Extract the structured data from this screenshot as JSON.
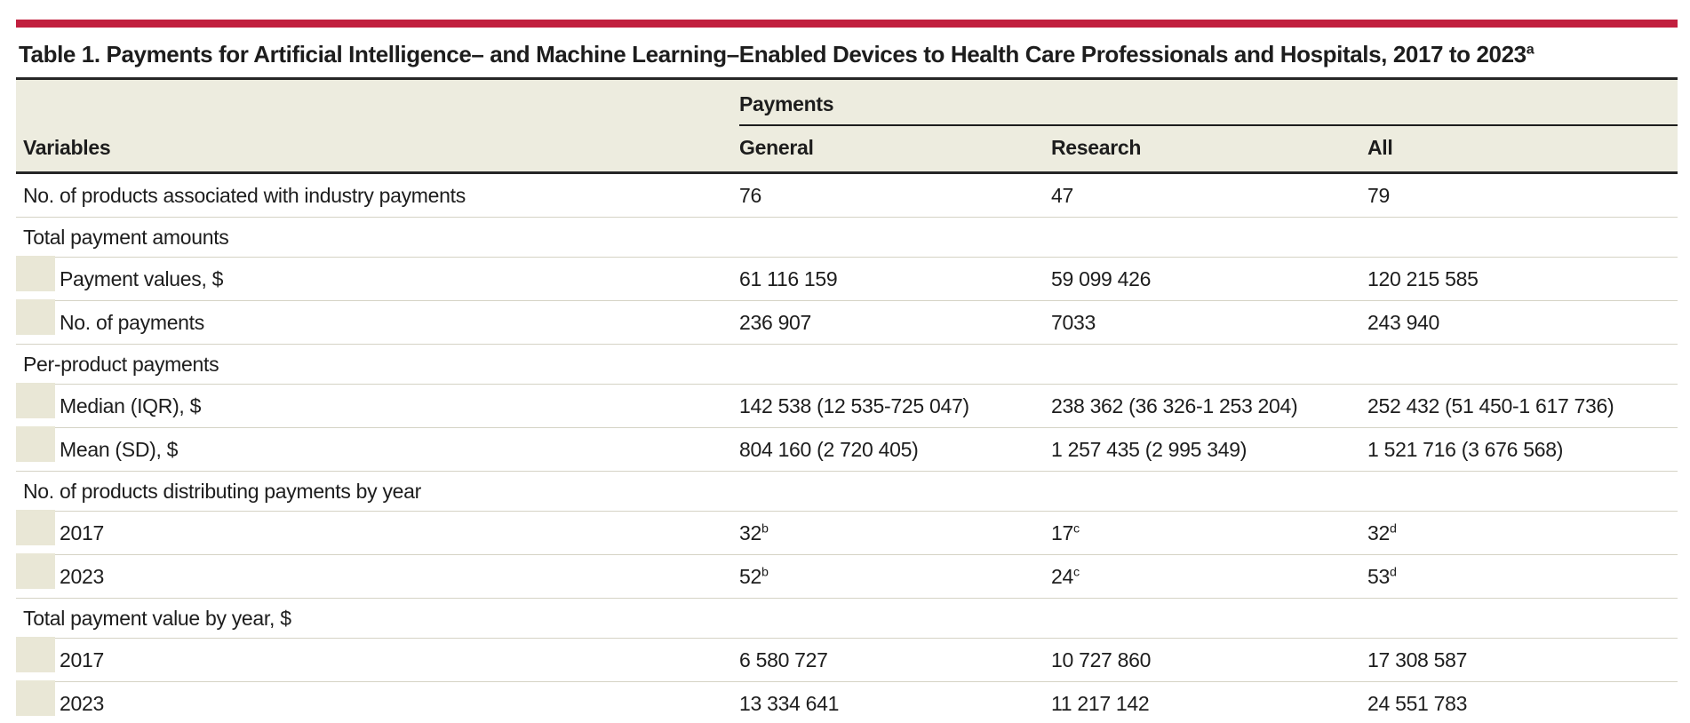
{
  "colors": {
    "accent_bar": "#c11f3e",
    "header_background": "#edecdf",
    "indent_marker": "#e9e7d6"
  },
  "title": {
    "text": "Table 1. Payments for Artificial Intelligence– and Machine Learning–Enabled Devices to Health Care Professionals and Hospitals, 2017 to 2023",
    "footnote_marker": "a"
  },
  "table": {
    "column_group_header": "Payments",
    "row_header": "Variables",
    "columns": [
      "General",
      "Research",
      "All"
    ],
    "rows": [
      {
        "type": "data",
        "indent": false,
        "label": "No. of products associated with industry payments",
        "cells": [
          {
            "v": "76"
          },
          {
            "v": "47"
          },
          {
            "v": "79"
          }
        ]
      },
      {
        "type": "section",
        "label": "Total payment amounts"
      },
      {
        "type": "data",
        "indent": true,
        "label": "Payment values, $",
        "cells": [
          {
            "v": "61 116 159"
          },
          {
            "v": "59 099 426"
          },
          {
            "v": "120 215 585"
          }
        ]
      },
      {
        "type": "data",
        "indent": true,
        "label": "No. of payments",
        "cells": [
          {
            "v": "236 907"
          },
          {
            "v": "7033"
          },
          {
            "v": "243 940"
          }
        ]
      },
      {
        "type": "section",
        "label": "Per-product payments"
      },
      {
        "type": "data",
        "indent": true,
        "label": "Median (IQR), $",
        "cells": [
          {
            "v": "142 538 (12 535-725 047)"
          },
          {
            "v": "238 362 (36 326-1 253 204)"
          },
          {
            "v": "252 432 (51 450-1 617 736)"
          }
        ]
      },
      {
        "type": "data",
        "indent": true,
        "label": "Mean (SD), $",
        "cells": [
          {
            "v": "804 160 (2 720 405)"
          },
          {
            "v": "1 257 435 (2 995 349)"
          },
          {
            "v": "1 521 716 (3 676 568)"
          }
        ]
      },
      {
        "type": "section",
        "label": "No. of products distributing payments by year"
      },
      {
        "type": "data",
        "indent": true,
        "label": "2017",
        "cells": [
          {
            "v": "32",
            "sup": "b"
          },
          {
            "v": "17",
            "sup": "c"
          },
          {
            "v": "32",
            "sup": "d"
          }
        ]
      },
      {
        "type": "data",
        "indent": true,
        "label": "2023",
        "cells": [
          {
            "v": "52",
            "sup": "b"
          },
          {
            "v": "24",
            "sup": "c"
          },
          {
            "v": "53",
            "sup": "d"
          }
        ]
      },
      {
        "type": "section",
        "label": "Total payment value by year, $"
      },
      {
        "type": "data",
        "indent": true,
        "label": "2017",
        "cells": [
          {
            "v": "6 580 727"
          },
          {
            "v": "10 727 860"
          },
          {
            "v": "17 308 587"
          }
        ]
      },
      {
        "type": "data",
        "indent": true,
        "label": "2023",
        "cells": [
          {
            "v": "13 334 641"
          },
          {
            "v": "11 217 142"
          },
          {
            "v": "24 551 783"
          }
        ]
      }
    ]
  }
}
